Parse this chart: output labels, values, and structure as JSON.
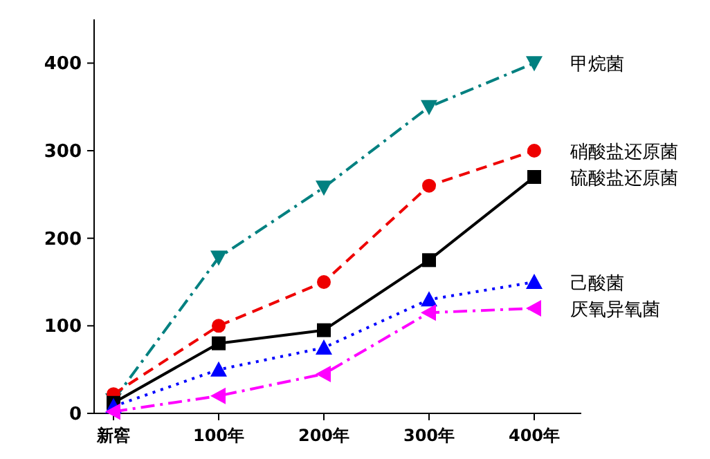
{
  "chart_data": {
    "type": "line",
    "categories": [
      "新窖",
      "100年",
      "200年",
      "300年",
      "400年"
    ],
    "ylim": [
      0,
      450
    ],
    "yticks": [
      0,
      100,
      200,
      300,
      400
    ],
    "grid": false,
    "series": [
      {
        "name": "甲烷菌",
        "color": "#008080",
        "values": [
          15,
          178,
          258,
          350,
          400
        ],
        "marker": "triangle_down",
        "line_style": "dashdot"
      },
      {
        "name": "硝酸盐还原菌",
        "color": "#ee0000",
        "values": [
          22,
          100,
          150,
          260,
          300
        ],
        "marker": "circle",
        "line_style": "dashed"
      },
      {
        "name": "硫酸盐还原菌",
        "color": "#000000",
        "values": [
          12,
          80,
          95,
          175,
          270
        ],
        "marker": "square",
        "line_style": "solid"
      },
      {
        "name": "己酸菌",
        "color": "#0000ff",
        "values": [
          8,
          50,
          75,
          130,
          150
        ],
        "marker": "triangle",
        "line_style": "dotted"
      },
      {
        "name": "厌氧异氧菌",
        "color": "#ff00ff",
        "values": [
          2,
          20,
          45,
          115,
          120
        ],
        "marker": "triangle_left",
        "line_style": "dashdot"
      }
    ]
  }
}
